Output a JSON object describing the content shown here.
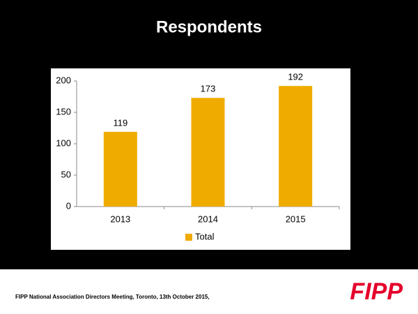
{
  "chart_data": {
    "type": "bar",
    "title": "Respondents",
    "categories": [
      "2013",
      "2014",
      "2015"
    ],
    "series": [
      {
        "name": "Total",
        "color": "#f0ab00",
        "values": [
          119,
          173,
          192
        ]
      }
    ],
    "ylim": [
      0,
      200
    ],
    "yticks": [
      0,
      50,
      100,
      150,
      200
    ],
    "grid": false,
    "legend": "bottom"
  },
  "footer": {
    "text": "FIPP National Association Directors Meeting, Toronto, 13th October 2015,",
    "logo": "FIPP"
  }
}
